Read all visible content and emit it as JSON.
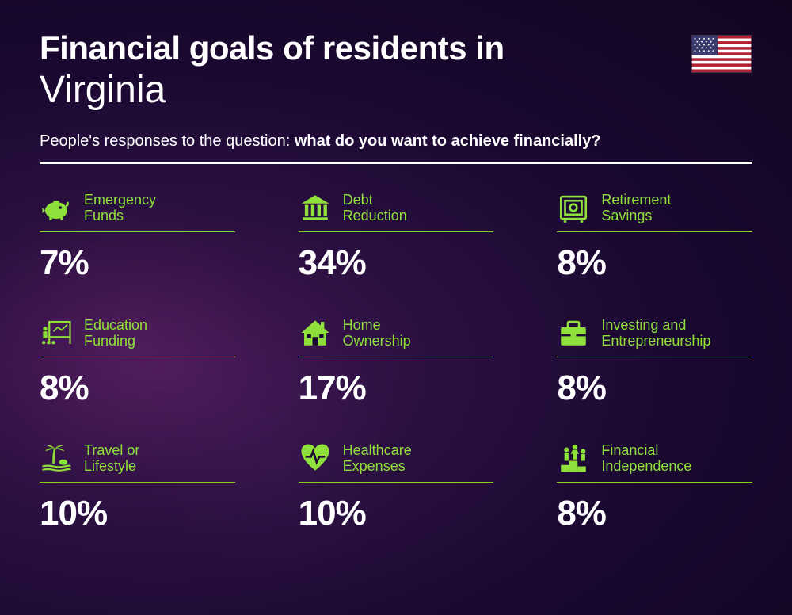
{
  "title_line1": "Financial goals of residents in",
  "title_line2": "Virginia",
  "subtitle_prefix": "People's responses to the question: ",
  "subtitle_bold": "what do you want to achieve financially?",
  "accent_color": "#8fe03a",
  "underline_color": "#7fd41f",
  "text_color": "#ffffff",
  "background_gradient": [
    "#4a1a5a",
    "#2a1040",
    "#1a0830",
    "#120520"
  ],
  "value_fontsize": 44,
  "label_fontsize": 18,
  "title_fontsize": 42,
  "subtitle_fontsize": 20,
  "flag": {
    "stripe_red": "#b22234",
    "stripe_white": "#ffffff",
    "canton_blue": "#3c3b6e"
  },
  "items": [
    {
      "icon": "piggy-bank-icon",
      "label": "Emergency\nFunds",
      "value": "7%"
    },
    {
      "icon": "bank-icon",
      "label": "Debt\nReduction",
      "value": "34%"
    },
    {
      "icon": "safe-icon",
      "label": "Retirement\nSavings",
      "value": "8%"
    },
    {
      "icon": "presentation-icon",
      "label": "Education\nFunding",
      "value": "8%"
    },
    {
      "icon": "house-icon",
      "label": "Home\nOwnership",
      "value": "17%"
    },
    {
      "icon": "briefcase-icon",
      "label": "Investing and\nEntrepreneurship",
      "value": "8%"
    },
    {
      "icon": "palm-beach-icon",
      "label": "Travel or\nLifestyle",
      "value": "10%"
    },
    {
      "icon": "heart-pulse-icon",
      "label": "Healthcare\nExpenses",
      "value": "10%"
    },
    {
      "icon": "podium-icon",
      "label": "Financial\nIndependence",
      "value": "8%"
    }
  ]
}
